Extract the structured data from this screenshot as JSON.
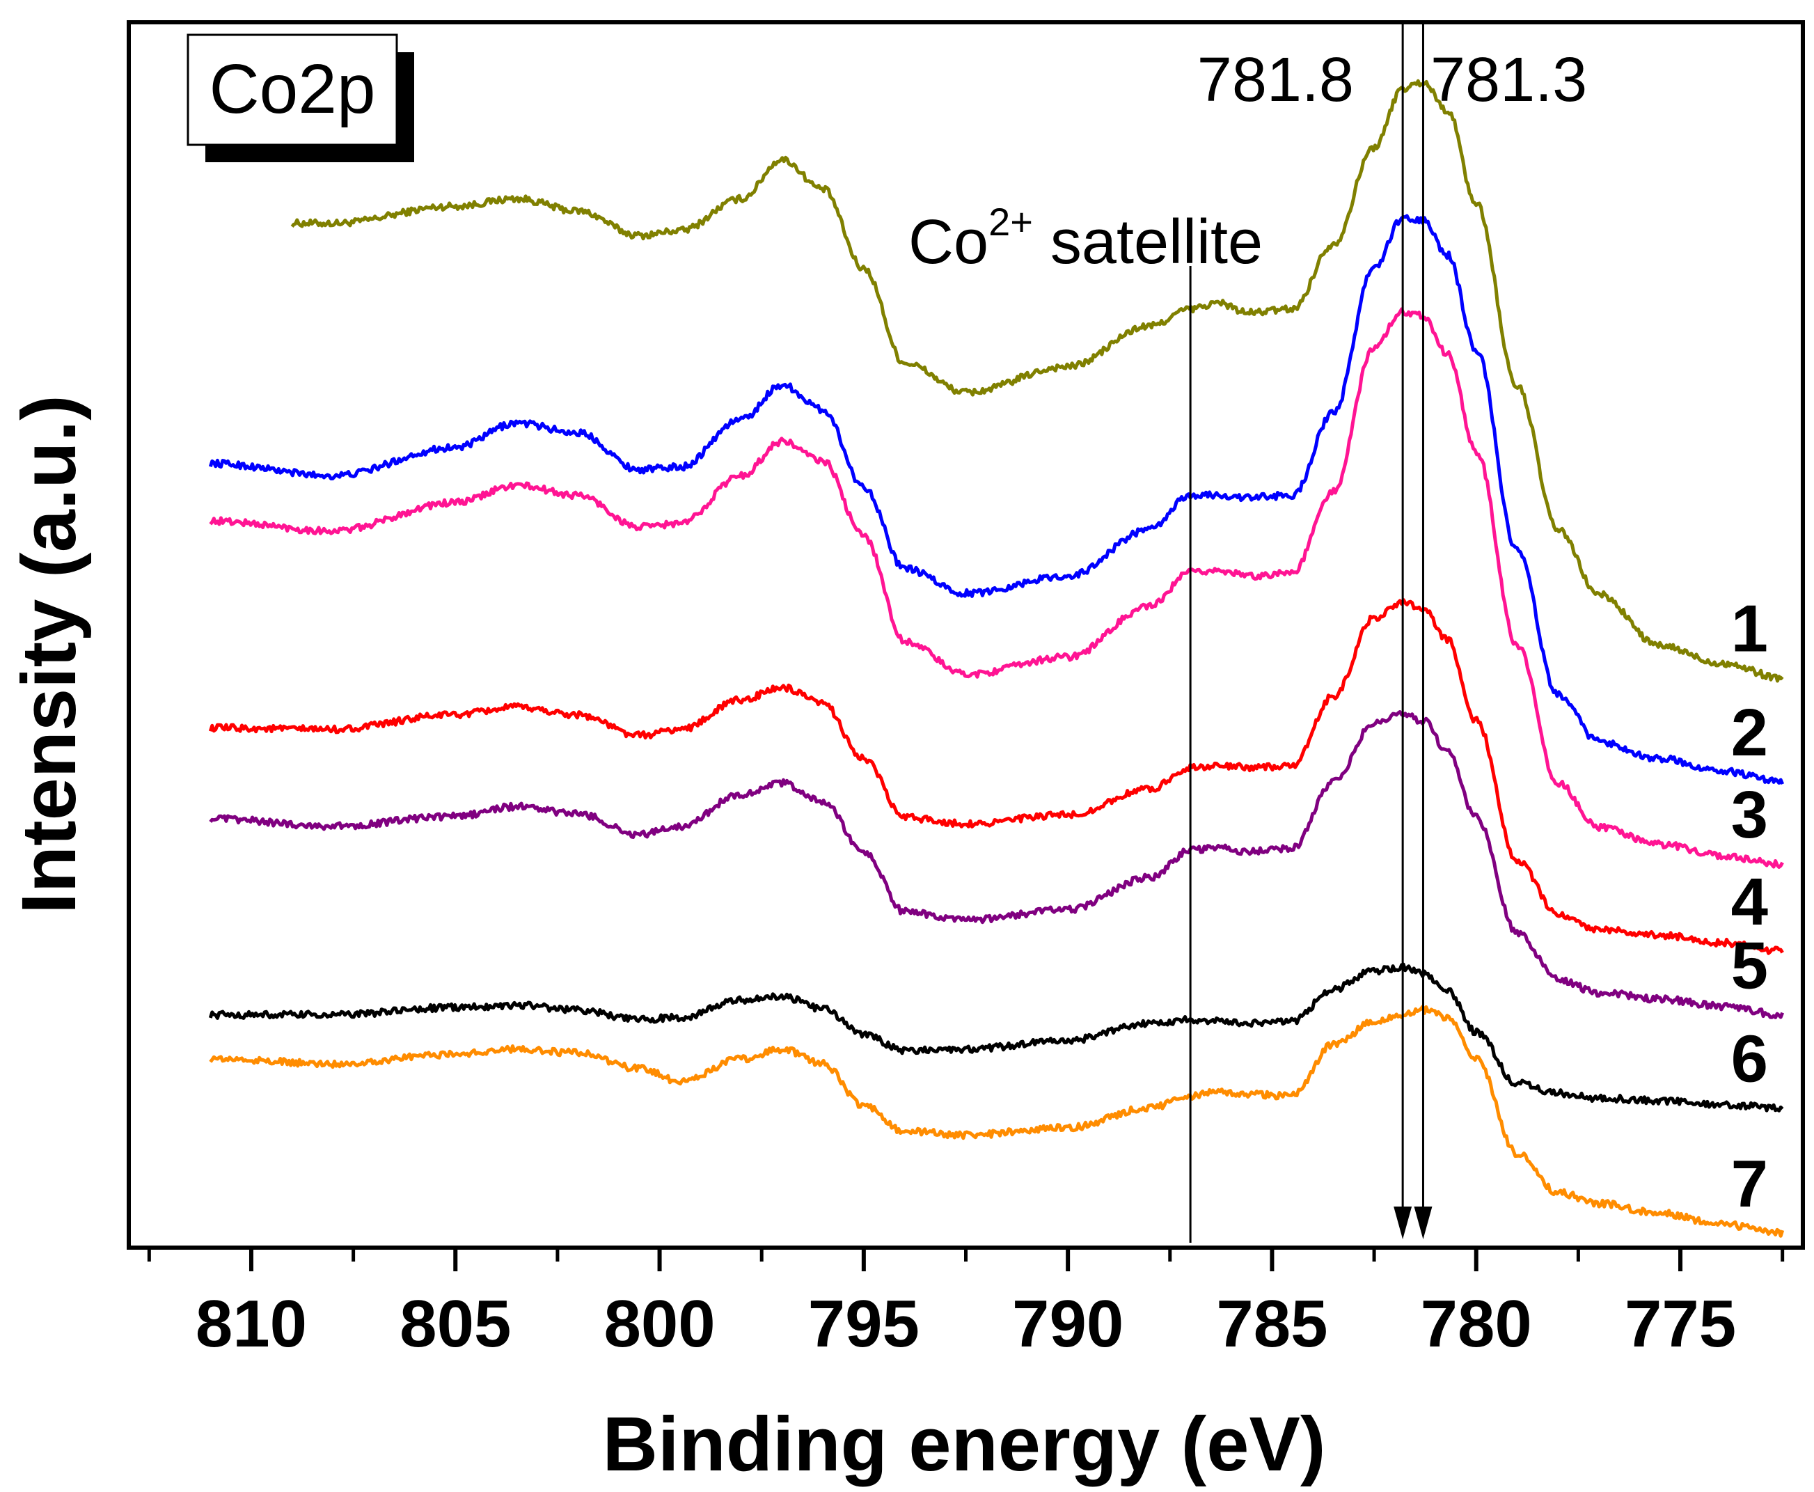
{
  "chart_data": {
    "type": "line",
    "title": "",
    "panel_label": "Co2p",
    "xlabel": "Binding energy (eV)",
    "ylabel": "Intensity (a.u.)",
    "x_reversed": true,
    "xlim": [
      813,
      772
    ],
    "ylim": [
      0,
      100
    ],
    "x_ticks": [
      810,
      805,
      800,
      795,
      790,
      785,
      780,
      775
    ],
    "x_tick_labels": [
      "810",
      "805",
      "800",
      "795",
      "790",
      "785",
      "780",
      "775"
    ],
    "y_ticks_shown": false,
    "annotations": {
      "satellite_label": "Co",
      "satellite_sup": "2+",
      "satellite_suffix": " satellite",
      "satellite_position_ev": 787.0,
      "peak_label_1": "781.8",
      "peak_label_2": "781.3",
      "peak_position_1_ev": 781.8,
      "peak_position_2_ev": 781.3
    },
    "x": [
      811,
      808,
      805,
      803.5,
      802,
      800.5,
      799.5,
      798,
      797,
      796,
      795,
      794,
      792.5,
      790,
      788,
      787,
      786.3,
      785.6,
      784.5,
      783.5,
      782.5,
      781.8,
      781.3,
      780.7,
      780,
      779,
      778,
      777,
      775.5,
      774,
      772.5
    ],
    "series": [
      {
        "name": "1",
        "label": "1",
        "color": "#808000",
        "x_start": 809,
        "values": [
          null,
          83.6,
          85.0,
          85.6,
          84.6,
          82.6,
          83.0,
          85.6,
          88.8,
          86.4,
          79.9,
          72.2,
          69.8,
          71.9,
          75.2,
          76.6,
          77.1,
          76.3,
          76.6,
          81.9,
          89.8,
          94.6,
          95.1,
          92.8,
          85.2,
          70.3,
          58.6,
          53.3,
          49.1,
          47.7,
          46.5
        ]
      },
      {
        "name": "2",
        "label": "2",
        "color": "#0000ff",
        "values": [
          64.0,
          63.0,
          65.3,
          67.3,
          66.5,
          63.5,
          63.7,
          67.6,
          70.4,
          68.4,
          62.1,
          55.4,
          53.4,
          54.8,
          58.6,
          61.4,
          61.4,
          61.2,
          61.4,
          68.1,
          80.0,
          84.0,
          83.8,
          81.0,
          73.3,
          56.9,
          45.1,
          41.3,
          39.9,
          38.9,
          38.0
        ]
      },
      {
        "name": "3",
        "label": "3",
        "color": "#ff1493",
        "values": [
          59.3,
          58.5,
          60.8,
          62.2,
          61.4,
          58.8,
          59.1,
          63.0,
          65.8,
          64.2,
          58.1,
          49.5,
          46.8,
          48.2,
          52.3,
          55.1,
          55.3,
          54.8,
          55.1,
          61.7,
          73.5,
          76.4,
          76.1,
          72.9,
          65.0,
          49.2,
          37.9,
          34.3,
          32.9,
          32.0,
          31.3
        ]
      },
      {
        "name": "4",
        "label": "4",
        "color": "#ff0000",
        "values": [
          42.4,
          42.3,
          43.5,
          44.1,
          43.5,
          41.8,
          42.3,
          44.7,
          45.7,
          44.4,
          39.9,
          35.1,
          34.6,
          35.3,
          37.4,
          39.2,
          39.3,
          39.2,
          39.3,
          45.0,
          51.4,
          52.7,
          52.2,
          49.6,
          43.0,
          31.6,
          27.2,
          26.0,
          25.5,
          24.9,
          24.2
        ]
      },
      {
        "name": "5",
        "label": "5",
        "color": "#800080",
        "values": [
          35.0,
          34.4,
          35.2,
          36.0,
          35.4,
          33.7,
          34.4,
          37.0,
          37.9,
          36.4,
          32.3,
          27.4,
          26.7,
          27.6,
          30.2,
          32.4,
          32.7,
          32.3,
          32.6,
          38.0,
          42.8,
          43.5,
          43.0,
          40.5,
          35.1,
          25.7,
          21.9,
          20.8,
          20.3,
          19.7,
          19.0
        ]
      },
      {
        "name": "6",
        "label": "6",
        "color": "#000000",
        "values": [
          19.0,
          19.0,
          19.6,
          19.8,
          19.4,
          18.6,
          18.8,
          20.2,
          20.5,
          19.5,
          17.4,
          16.1,
          16.2,
          16.9,
          18.3,
          18.6,
          18.5,
          18.3,
          18.5,
          21.1,
          22.6,
          22.9,
          22.4,
          21.0,
          17.6,
          13.4,
          12.6,
          12.2,
          12.0,
          11.7,
          11.4
        ]
      },
      {
        "name": "7",
        "label": "7",
        "color": "#ff8c00",
        "values": [
          15.4,
          15.0,
          15.8,
          16.2,
          15.9,
          14.6,
          13.6,
          15.4,
          16.2,
          15.0,
          11.6,
          9.5,
          9.2,
          9.8,
          11.4,
          12.4,
          12.7,
          12.5,
          12.4,
          16.6,
          18.4,
          19.0,
          19.4,
          18.8,
          15.4,
          7.7,
          4.5,
          3.6,
          2.8,
          1.9,
          1.2
        ]
      }
    ]
  }
}
